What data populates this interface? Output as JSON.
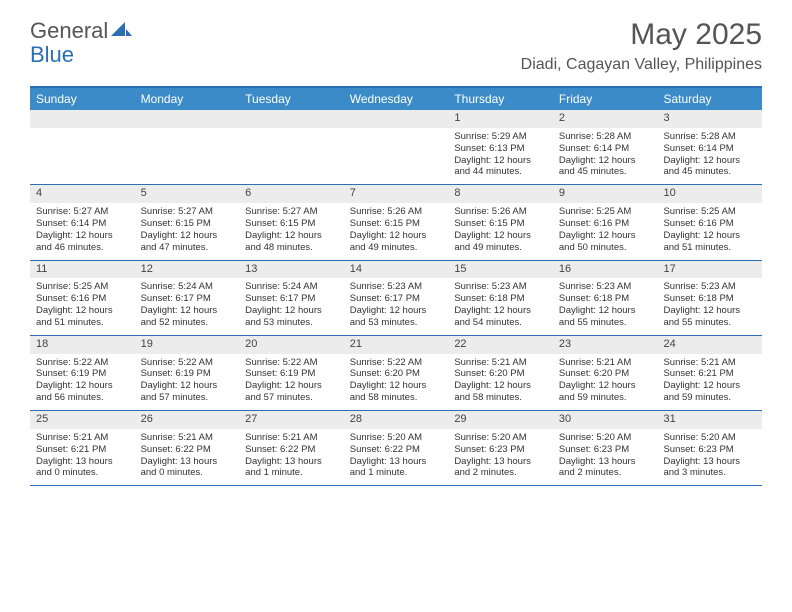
{
  "brand": {
    "part1": "General",
    "part2": "Blue"
  },
  "title": "May 2025",
  "location": "Diadi, Cagayan Valley, Philippines",
  "colors": {
    "header_bg": "#3b8bc9",
    "border": "#2a6fb5",
    "daynum_bg": "#ececec",
    "text": "#333333",
    "title_text": "#555555"
  },
  "day_names": [
    "Sunday",
    "Monday",
    "Tuesday",
    "Wednesday",
    "Thursday",
    "Friday",
    "Saturday"
  ],
  "weeks": [
    [
      null,
      null,
      null,
      null,
      {
        "n": "1",
        "sr": "Sunrise: 5:29 AM",
        "ss": "Sunset: 6:13 PM",
        "d1": "Daylight: 12 hours",
        "d2": "and 44 minutes."
      },
      {
        "n": "2",
        "sr": "Sunrise: 5:28 AM",
        "ss": "Sunset: 6:14 PM",
        "d1": "Daylight: 12 hours",
        "d2": "and 45 minutes."
      },
      {
        "n": "3",
        "sr": "Sunrise: 5:28 AM",
        "ss": "Sunset: 6:14 PM",
        "d1": "Daylight: 12 hours",
        "d2": "and 45 minutes."
      }
    ],
    [
      {
        "n": "4",
        "sr": "Sunrise: 5:27 AM",
        "ss": "Sunset: 6:14 PM",
        "d1": "Daylight: 12 hours",
        "d2": "and 46 minutes."
      },
      {
        "n": "5",
        "sr": "Sunrise: 5:27 AM",
        "ss": "Sunset: 6:15 PM",
        "d1": "Daylight: 12 hours",
        "d2": "and 47 minutes."
      },
      {
        "n": "6",
        "sr": "Sunrise: 5:27 AM",
        "ss": "Sunset: 6:15 PM",
        "d1": "Daylight: 12 hours",
        "d2": "and 48 minutes."
      },
      {
        "n": "7",
        "sr": "Sunrise: 5:26 AM",
        "ss": "Sunset: 6:15 PM",
        "d1": "Daylight: 12 hours",
        "d2": "and 49 minutes."
      },
      {
        "n": "8",
        "sr": "Sunrise: 5:26 AM",
        "ss": "Sunset: 6:15 PM",
        "d1": "Daylight: 12 hours",
        "d2": "and 49 minutes."
      },
      {
        "n": "9",
        "sr": "Sunrise: 5:25 AM",
        "ss": "Sunset: 6:16 PM",
        "d1": "Daylight: 12 hours",
        "d2": "and 50 minutes."
      },
      {
        "n": "10",
        "sr": "Sunrise: 5:25 AM",
        "ss": "Sunset: 6:16 PM",
        "d1": "Daylight: 12 hours",
        "d2": "and 51 minutes."
      }
    ],
    [
      {
        "n": "11",
        "sr": "Sunrise: 5:25 AM",
        "ss": "Sunset: 6:16 PM",
        "d1": "Daylight: 12 hours",
        "d2": "and 51 minutes."
      },
      {
        "n": "12",
        "sr": "Sunrise: 5:24 AM",
        "ss": "Sunset: 6:17 PM",
        "d1": "Daylight: 12 hours",
        "d2": "and 52 minutes."
      },
      {
        "n": "13",
        "sr": "Sunrise: 5:24 AM",
        "ss": "Sunset: 6:17 PM",
        "d1": "Daylight: 12 hours",
        "d2": "and 53 minutes."
      },
      {
        "n": "14",
        "sr": "Sunrise: 5:23 AM",
        "ss": "Sunset: 6:17 PM",
        "d1": "Daylight: 12 hours",
        "d2": "and 53 minutes."
      },
      {
        "n": "15",
        "sr": "Sunrise: 5:23 AM",
        "ss": "Sunset: 6:18 PM",
        "d1": "Daylight: 12 hours",
        "d2": "and 54 minutes."
      },
      {
        "n": "16",
        "sr": "Sunrise: 5:23 AM",
        "ss": "Sunset: 6:18 PM",
        "d1": "Daylight: 12 hours",
        "d2": "and 55 minutes."
      },
      {
        "n": "17",
        "sr": "Sunrise: 5:23 AM",
        "ss": "Sunset: 6:18 PM",
        "d1": "Daylight: 12 hours",
        "d2": "and 55 minutes."
      }
    ],
    [
      {
        "n": "18",
        "sr": "Sunrise: 5:22 AM",
        "ss": "Sunset: 6:19 PM",
        "d1": "Daylight: 12 hours",
        "d2": "and 56 minutes."
      },
      {
        "n": "19",
        "sr": "Sunrise: 5:22 AM",
        "ss": "Sunset: 6:19 PM",
        "d1": "Daylight: 12 hours",
        "d2": "and 57 minutes."
      },
      {
        "n": "20",
        "sr": "Sunrise: 5:22 AM",
        "ss": "Sunset: 6:19 PM",
        "d1": "Daylight: 12 hours",
        "d2": "and 57 minutes."
      },
      {
        "n": "21",
        "sr": "Sunrise: 5:22 AM",
        "ss": "Sunset: 6:20 PM",
        "d1": "Daylight: 12 hours",
        "d2": "and 58 minutes."
      },
      {
        "n": "22",
        "sr": "Sunrise: 5:21 AM",
        "ss": "Sunset: 6:20 PM",
        "d1": "Daylight: 12 hours",
        "d2": "and 58 minutes."
      },
      {
        "n": "23",
        "sr": "Sunrise: 5:21 AM",
        "ss": "Sunset: 6:20 PM",
        "d1": "Daylight: 12 hours",
        "d2": "and 59 minutes."
      },
      {
        "n": "24",
        "sr": "Sunrise: 5:21 AM",
        "ss": "Sunset: 6:21 PM",
        "d1": "Daylight: 12 hours",
        "d2": "and 59 minutes."
      }
    ],
    [
      {
        "n": "25",
        "sr": "Sunrise: 5:21 AM",
        "ss": "Sunset: 6:21 PM",
        "d1": "Daylight: 13 hours",
        "d2": "and 0 minutes."
      },
      {
        "n": "26",
        "sr": "Sunrise: 5:21 AM",
        "ss": "Sunset: 6:22 PM",
        "d1": "Daylight: 13 hours",
        "d2": "and 0 minutes."
      },
      {
        "n": "27",
        "sr": "Sunrise: 5:21 AM",
        "ss": "Sunset: 6:22 PM",
        "d1": "Daylight: 13 hours",
        "d2": "and 1 minute."
      },
      {
        "n": "28",
        "sr": "Sunrise: 5:20 AM",
        "ss": "Sunset: 6:22 PM",
        "d1": "Daylight: 13 hours",
        "d2": "and 1 minute."
      },
      {
        "n": "29",
        "sr": "Sunrise: 5:20 AM",
        "ss": "Sunset: 6:23 PM",
        "d1": "Daylight: 13 hours",
        "d2": "and 2 minutes."
      },
      {
        "n": "30",
        "sr": "Sunrise: 5:20 AM",
        "ss": "Sunset: 6:23 PM",
        "d1": "Daylight: 13 hours",
        "d2": "and 2 minutes."
      },
      {
        "n": "31",
        "sr": "Sunrise: 5:20 AM",
        "ss": "Sunset: 6:23 PM",
        "d1": "Daylight: 13 hours",
        "d2": "and 3 minutes."
      }
    ]
  ]
}
